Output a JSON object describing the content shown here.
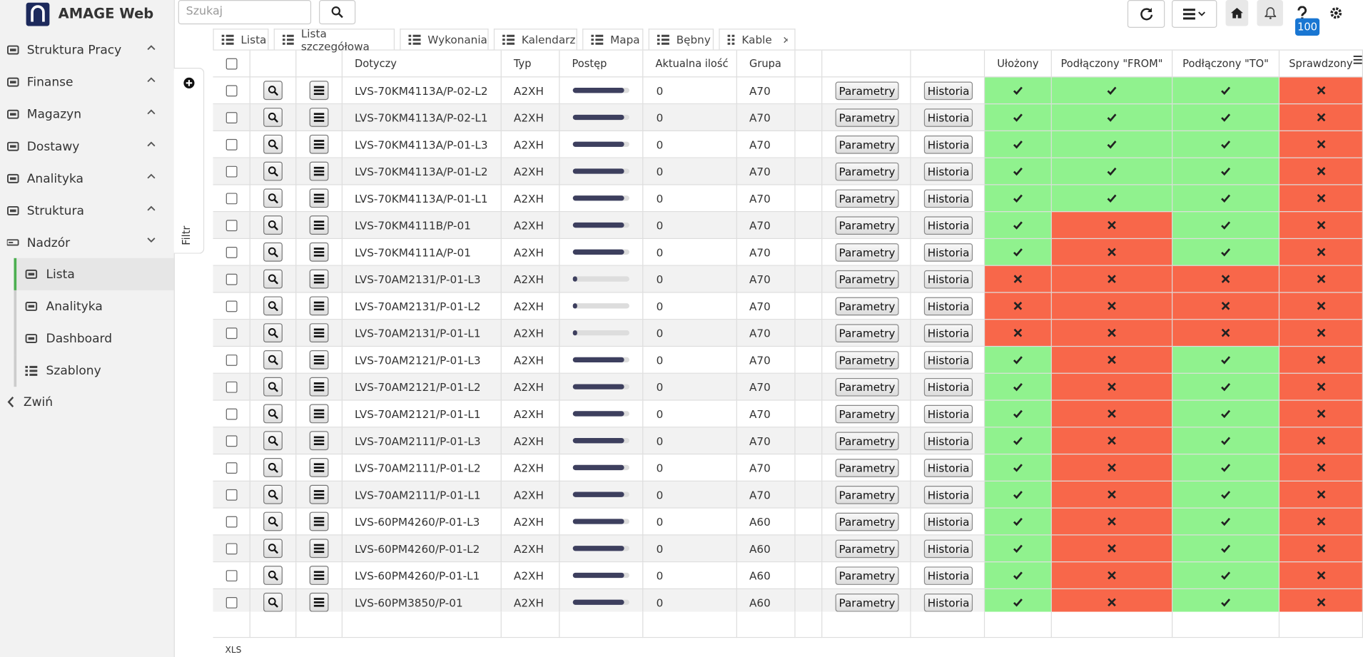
{
  "header": {
    "title": "AMAGE Web",
    "search_placeholder": "Szukaj",
    "badge": "100"
  },
  "sidebar": {
    "items": [
      "Struktura Pracy",
      "Finanse",
      "Magazyn",
      "Dostawy",
      "Analityka",
      "Struktura",
      "Nadzór"
    ],
    "subitems": [
      "Lista",
      "Analityka",
      "Dashboard",
      "Szablony"
    ],
    "collapse": "Zwiń"
  },
  "filter": "Filtr",
  "tabs": [
    "Lista",
    "Lista szczegółowa",
    "Wykonania",
    "Kalendarz",
    "Mapa",
    "Bębny",
    "Kable"
  ],
  "table": {
    "columns": [
      "Dotyczy",
      "Typ",
      "Postęp",
      "Aktualna ilość",
      "Grupa",
      "Ułożony",
      "Podłączony \"FROM\"",
      "Podłączony \"TO\"",
      "Sprawdzony"
    ],
    "buttons": [
      "Parametry",
      "Historia"
    ],
    "rows": [
      {
        "dotyczy": "LVS-70KM4113A/P-02-L2",
        "typ": "A2XH",
        "postep": 90,
        "ilosc": 0,
        "grupa": "A70",
        "status": [
          true,
          true,
          true,
          false
        ]
      },
      {
        "dotyczy": "LVS-70KM4113A/P-02-L1",
        "typ": "A2XH",
        "postep": 90,
        "ilosc": 0,
        "grupa": "A70",
        "status": [
          true,
          true,
          true,
          false
        ]
      },
      {
        "dotyczy": "LVS-70KM4113A/P-01-L3",
        "typ": "A2XH",
        "postep": 90,
        "ilosc": 0,
        "grupa": "A70",
        "status": [
          true,
          true,
          true,
          false
        ]
      },
      {
        "dotyczy": "LVS-70KM4113A/P-01-L2",
        "typ": "A2XH",
        "postep": 90,
        "ilosc": 0,
        "grupa": "A70",
        "status": [
          true,
          true,
          true,
          false
        ]
      },
      {
        "dotyczy": "LVS-70KM4113A/P-01-L1",
        "typ": "A2XH",
        "postep": 90,
        "ilosc": 0,
        "grupa": "A70",
        "status": [
          true,
          true,
          true,
          false
        ]
      },
      {
        "dotyczy": "LVS-70KM4111B/P-01",
        "typ": "A2XH",
        "postep": 90,
        "ilosc": 0,
        "grupa": "A70",
        "status": [
          true,
          false,
          true,
          false
        ]
      },
      {
        "dotyczy": "LVS-70KM4111A/P-01",
        "typ": "A2XH",
        "postep": 90,
        "ilosc": 0,
        "grupa": "A70",
        "status": [
          true,
          false,
          true,
          false
        ]
      },
      {
        "dotyczy": "LVS-70AM2131/P-01-L3",
        "typ": "A2XH",
        "postep": 8,
        "ilosc": 0,
        "grupa": "A70",
        "status": [
          false,
          false,
          false,
          false
        ]
      },
      {
        "dotyczy": "LVS-70AM2131/P-01-L2",
        "typ": "A2XH",
        "postep": 8,
        "ilosc": 0,
        "grupa": "A70",
        "status": [
          false,
          false,
          false,
          false
        ]
      },
      {
        "dotyczy": "LVS-70AM2131/P-01-L1",
        "typ": "A2XH",
        "postep": 8,
        "ilosc": 0,
        "grupa": "A70",
        "status": [
          false,
          false,
          false,
          false
        ]
      },
      {
        "dotyczy": "LVS-70AM2121/P-01-L3",
        "typ": "A2XH",
        "postep": 90,
        "ilosc": 0,
        "grupa": "A70",
        "status": [
          true,
          false,
          true,
          false
        ]
      },
      {
        "dotyczy": "LVS-70AM2121/P-01-L2",
        "typ": "A2XH",
        "postep": 90,
        "ilosc": 0,
        "grupa": "A70",
        "status": [
          true,
          false,
          true,
          false
        ]
      },
      {
        "dotyczy": "LVS-70AM2121/P-01-L1",
        "typ": "A2XH",
        "postep": 90,
        "ilosc": 0,
        "grupa": "A70",
        "status": [
          true,
          false,
          true,
          false
        ]
      },
      {
        "dotyczy": "LVS-70AM2111/P-01-L3",
        "typ": "A2XH",
        "postep": 90,
        "ilosc": 0,
        "grupa": "A70",
        "status": [
          true,
          false,
          true,
          false
        ]
      },
      {
        "dotyczy": "LVS-70AM2111/P-01-L2",
        "typ": "A2XH",
        "postep": 90,
        "ilosc": 0,
        "grupa": "A70",
        "status": [
          true,
          false,
          true,
          false
        ]
      },
      {
        "dotyczy": "LVS-70AM2111/P-01-L1",
        "typ": "A2XH",
        "postep": 90,
        "ilosc": 0,
        "grupa": "A70",
        "status": [
          true,
          false,
          true,
          false
        ]
      },
      {
        "dotyczy": "LVS-60PM4260/P-01-L3",
        "typ": "A2XH",
        "postep": 90,
        "ilosc": 0,
        "grupa": "A60",
        "status": [
          true,
          false,
          true,
          false
        ]
      },
      {
        "dotyczy": "LVS-60PM4260/P-01-L2",
        "typ": "A2XH",
        "postep": 90,
        "ilosc": 0,
        "grupa": "A60",
        "status": [
          true,
          false,
          true,
          false
        ]
      },
      {
        "dotyczy": "LVS-60PM4260/P-01-L1",
        "typ": "A2XH",
        "postep": 90,
        "ilosc": 0,
        "grupa": "A60",
        "status": [
          true,
          false,
          true,
          false
        ]
      },
      {
        "dotyczy": "LVS-60PM3850/P-01",
        "typ": "A2XH",
        "postep": 90,
        "ilosc": 0,
        "grupa": "A60",
        "status": [
          true,
          false,
          true,
          false
        ]
      }
    ]
  },
  "footer": {
    "export": "XLS"
  }
}
